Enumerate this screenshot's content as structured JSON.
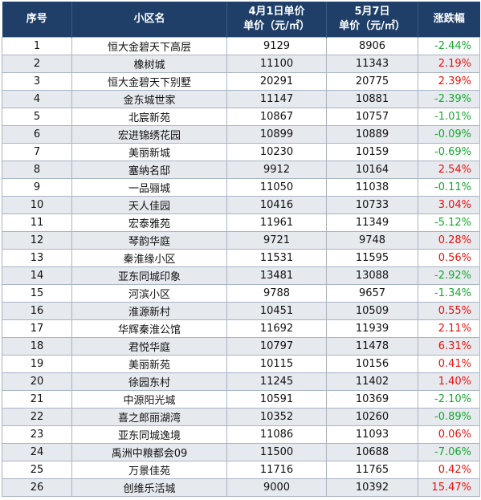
{
  "header": {
    "col_index": "序号",
    "col_name": "小区名",
    "col_price1_line1": "4月1日单价",
    "col_price1_line2": "单价（元/㎡）",
    "col_price2_line1": "5月7日",
    "col_price2_line2": "单价（元/㎡）",
    "col_change": "涨跌幅"
  },
  "colors": {
    "header_bg": "#1f3f69",
    "up": "#e8140e",
    "down": "#18a830",
    "stripe": "#e6e9ee"
  },
  "rows": [
    {
      "no": "1",
      "name": "恒大金碧天下高层",
      "p1": "9129",
      "p2": "8906",
      "chg": "-2.44%"
    },
    {
      "no": "2",
      "name": "橡树城",
      "p1": "11100",
      "p2": "11343",
      "chg": "2.19%"
    },
    {
      "no": "3",
      "name": "恒大金碧天下别墅",
      "p1": "20291",
      "p2": "20775",
      "chg": "2.39%"
    },
    {
      "no": "4",
      "name": "金东城世家",
      "p1": "11147",
      "p2": "10881",
      "chg": "-2.39%"
    },
    {
      "no": "5",
      "name": "北宸新苑",
      "p1": "10867",
      "p2": "10757",
      "chg": "-1.01%"
    },
    {
      "no": "6",
      "name": "宏进锦绣花园",
      "p1": "10899",
      "p2": "10889",
      "chg": "-0.09%"
    },
    {
      "no": "7",
      "name": "美丽新城",
      "p1": "10230",
      "p2": "10159",
      "chg": "-0.69%"
    },
    {
      "no": "8",
      "name": "塞纳名邸",
      "p1": "9912",
      "p2": "10164",
      "chg": "2.54%"
    },
    {
      "no": "9",
      "name": "一品骊城",
      "p1": "11050",
      "p2": "11038",
      "chg": "-0.11%"
    },
    {
      "no": "10",
      "name": "天人佳园",
      "p1": "10416",
      "p2": "10733",
      "chg": "3.04%"
    },
    {
      "no": "11",
      "name": "宏泰雅苑",
      "p1": "11961",
      "p2": "11349",
      "chg": "-5.12%"
    },
    {
      "no": "12",
      "name": "琴韵华庭",
      "p1": "9721",
      "p2": "9748",
      "chg": "0.28%"
    },
    {
      "no": "13",
      "name": "秦淮缘小区",
      "p1": "11531",
      "p2": "11595",
      "chg": "0.56%"
    },
    {
      "no": "14",
      "name": "亚东同城印象",
      "p1": "13481",
      "p2": "13088",
      "chg": "-2.92%"
    },
    {
      "no": "15",
      "name": "河滨小区",
      "p1": "9788",
      "p2": "9657",
      "chg": "-1.34%"
    },
    {
      "no": "16",
      "name": "淮源新村",
      "p1": "10451",
      "p2": "10509",
      "chg": "0.55%"
    },
    {
      "no": "17",
      "name": "华辉秦淮公馆",
      "p1": "11692",
      "p2": "11939",
      "chg": "2.11%"
    },
    {
      "no": "18",
      "name": "君悦华庭",
      "p1": "10797",
      "p2": "11478",
      "chg": "6.31%"
    },
    {
      "no": "19",
      "name": "美丽新苑",
      "p1": "10115",
      "p2": "10156",
      "chg": "0.41%"
    },
    {
      "no": "20",
      "name": "徐园东村",
      "p1": "11245",
      "p2": "11402",
      "chg": "1.40%"
    },
    {
      "no": "21",
      "name": "中源阳光城",
      "p1": "10591",
      "p2": "10369",
      "chg": "-2.10%"
    },
    {
      "no": "22",
      "name": "喜之郎丽湖湾",
      "p1": "10352",
      "p2": "10260",
      "chg": "-0.89%"
    },
    {
      "no": "23",
      "name": "亚东同城逸境",
      "p1": "11086",
      "p2": "11093",
      "chg": "0.06%"
    },
    {
      "no": "24",
      "name": "禹洲中粮都会09",
      "p1": "11500",
      "p2": "10688",
      "chg": "-7.06%"
    },
    {
      "no": "25",
      "name": "万景佳苑",
      "p1": "11716",
      "p2": "11765",
      "chg": "0.42%"
    },
    {
      "no": "26",
      "name": "创维乐活城",
      "p1": "9000",
      "p2": "10392",
      "chg": "15.47%"
    }
  ]
}
